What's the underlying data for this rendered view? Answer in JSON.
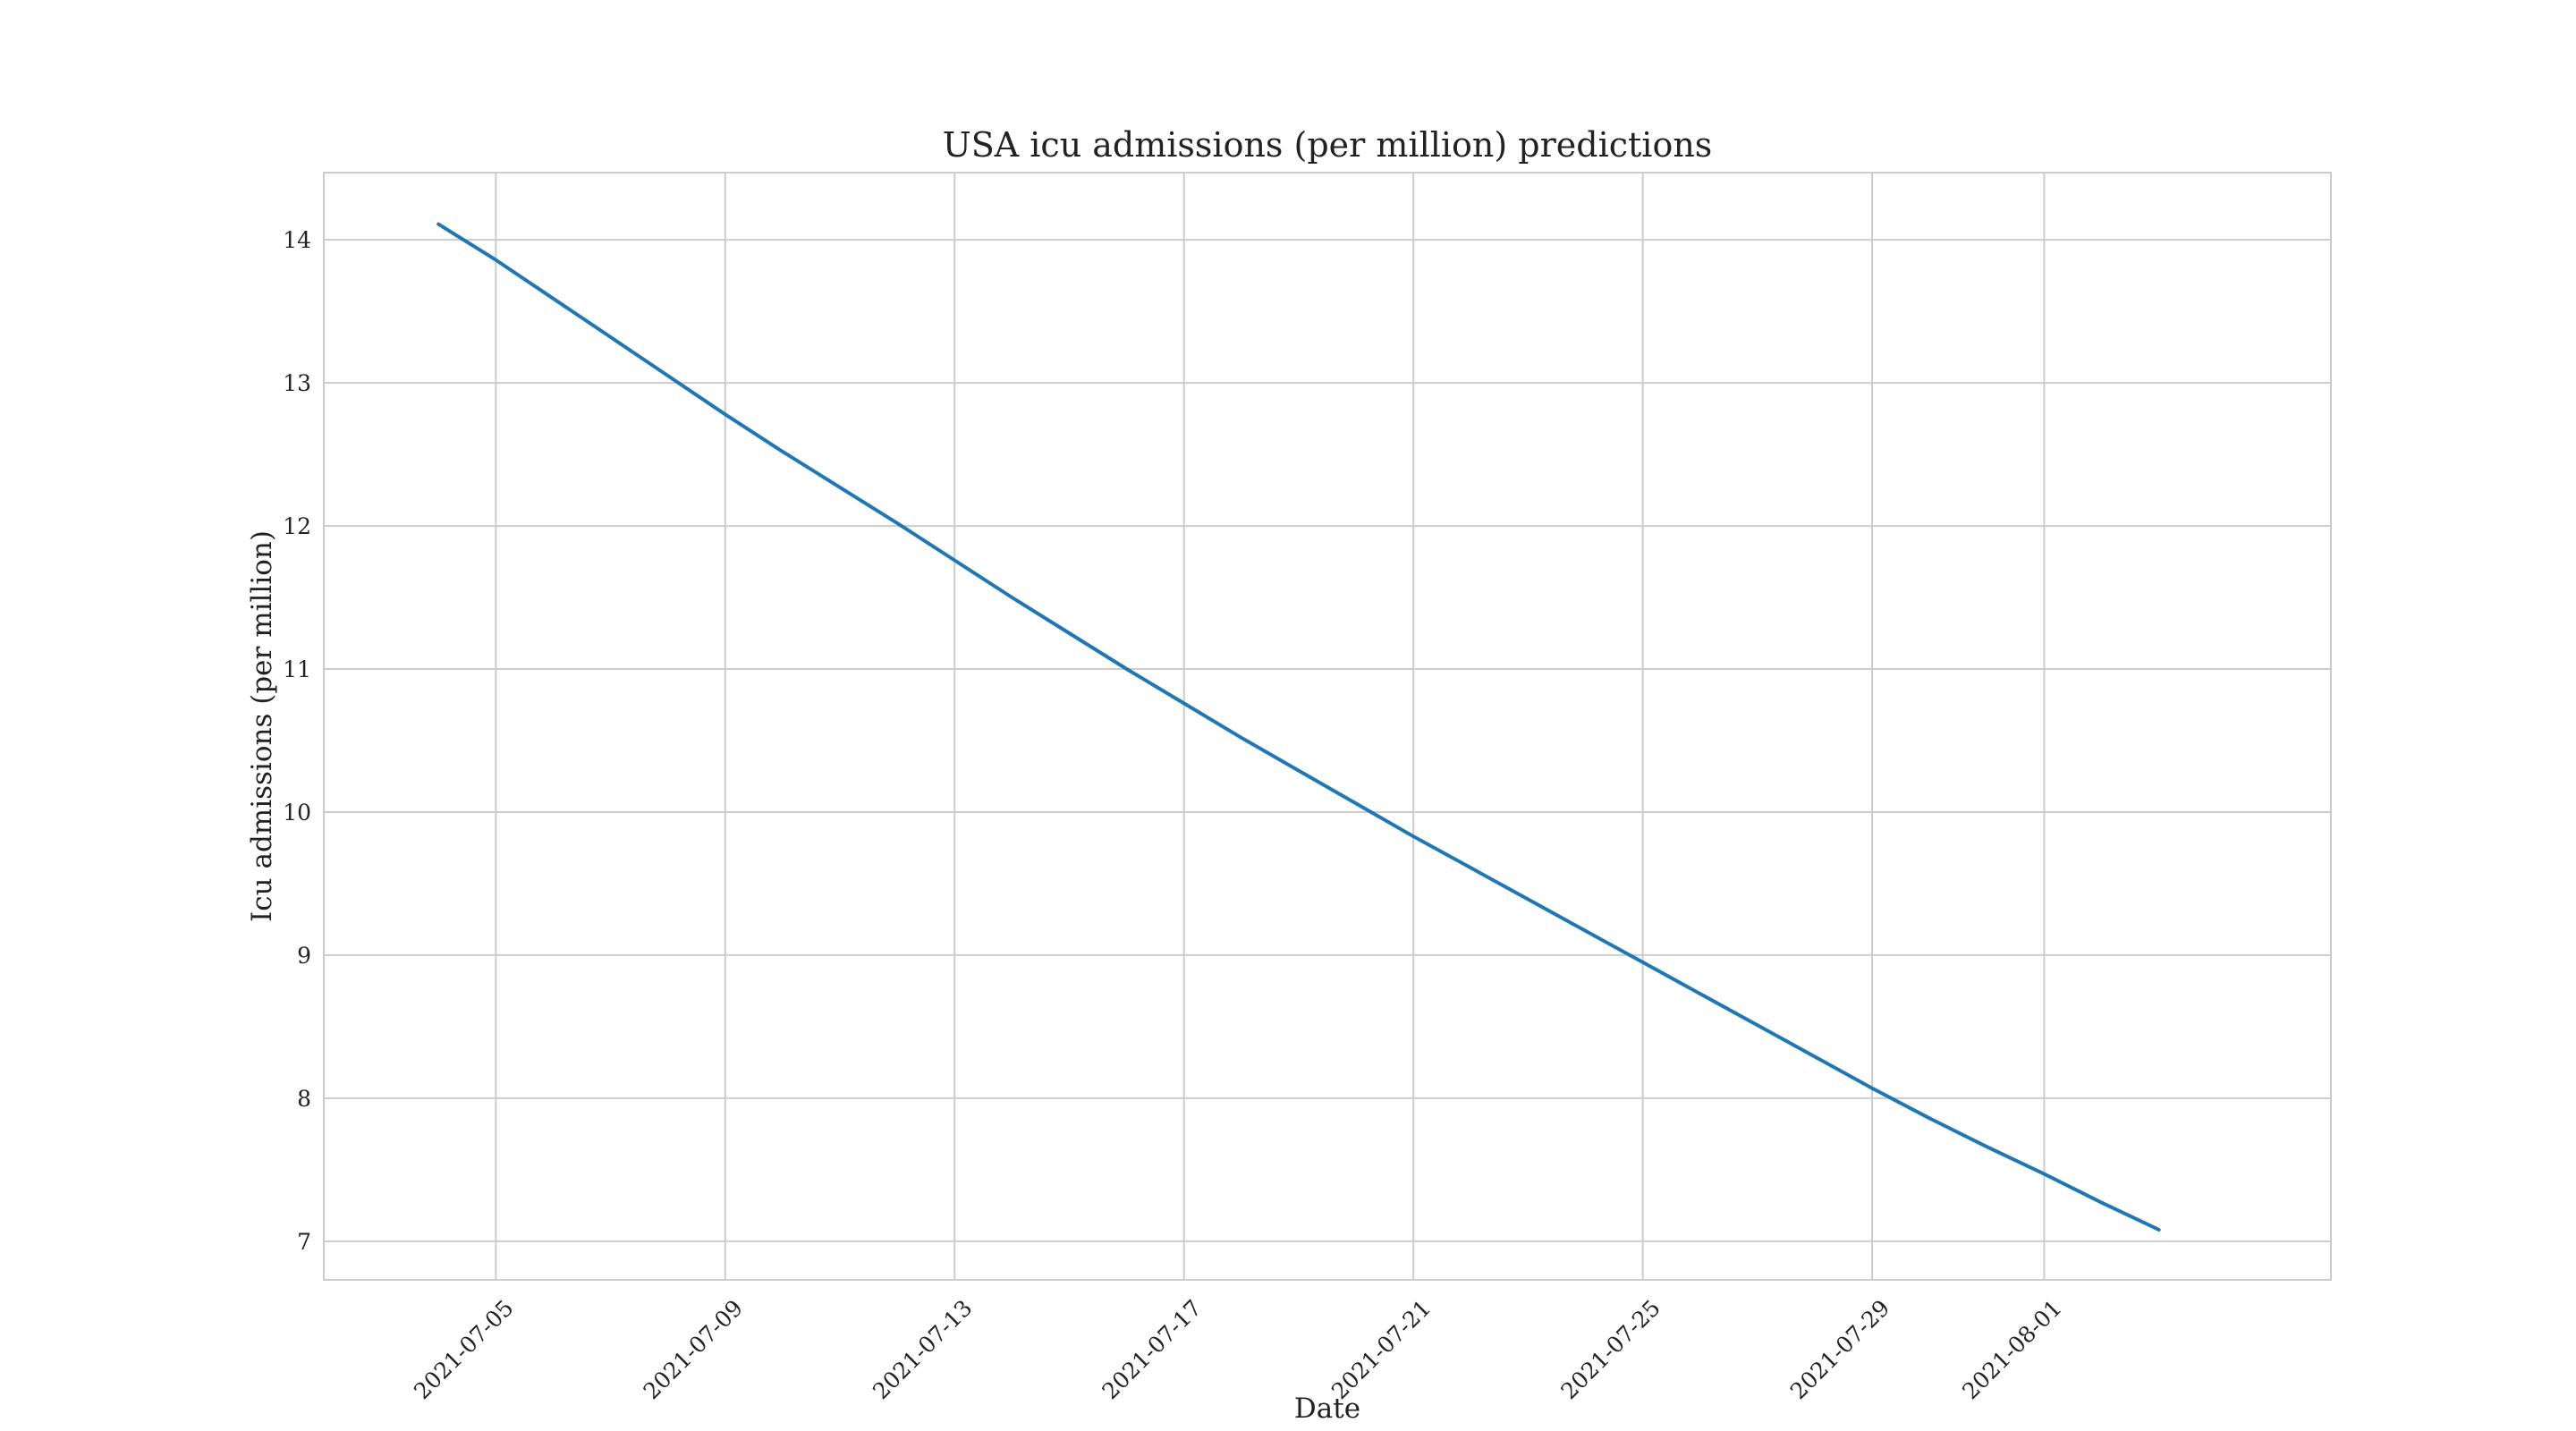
{
  "chart_data": {
    "type": "line",
    "title": "USA icu admissions (per million) predictions",
    "xlabel": "Date",
    "ylabel": "Icu admissions (per million)",
    "grid": true,
    "xlim": [
      "2021-07-02",
      "2021-08-06"
    ],
    "ylim": [
      6.73,
      14.47
    ],
    "x_ticks": [
      "2021-07-05",
      "2021-07-09",
      "2021-07-13",
      "2021-07-17",
      "2021-07-21",
      "2021-07-25",
      "2021-07-29",
      "2021-08-01"
    ],
    "y_ticks": [
      7,
      8,
      9,
      10,
      11,
      12,
      13,
      14
    ],
    "colors": {
      "line": "#1f77b4",
      "grid": "#cccccc",
      "frame": "#cccccc"
    },
    "series": [
      {
        "x": [
          "2021-07-04",
          "2021-07-05",
          "2021-07-06",
          "2021-07-07",
          "2021-07-08",
          "2021-07-09",
          "2021-07-10",
          "2021-07-11",
          "2021-07-12",
          "2021-07-13",
          "2021-07-14",
          "2021-07-15",
          "2021-07-16",
          "2021-07-17",
          "2021-07-18",
          "2021-07-19",
          "2021-07-20",
          "2021-07-21",
          "2021-07-22",
          "2021-07-23",
          "2021-07-24",
          "2021-07-25",
          "2021-07-26",
          "2021-07-27",
          "2021-07-28",
          "2021-07-29",
          "2021-07-30",
          "2021-07-31",
          "2021-08-01",
          "2021-08-02",
          "2021-08-03"
        ],
        "y": [
          14.11,
          13.86,
          13.59,
          13.32,
          13.05,
          12.78,
          12.52,
          12.27,
          12.02,
          11.76,
          11.5,
          11.25,
          11.0,
          10.76,
          10.52,
          10.29,
          10.06,
          9.83,
          9.61,
          9.39,
          9.17,
          8.95,
          8.73,
          8.51,
          8.29,
          8.07,
          7.86,
          7.66,
          7.47,
          7.27,
          7.08
        ]
      }
    ]
  }
}
